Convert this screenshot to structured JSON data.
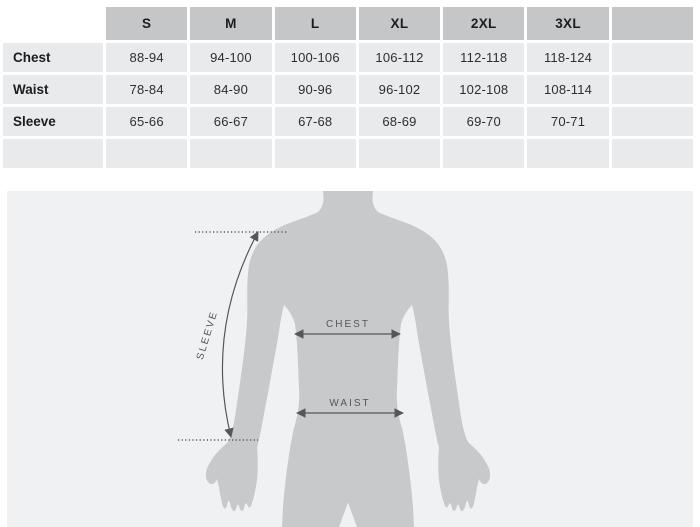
{
  "size_chart": {
    "columns": [
      "S",
      "M",
      "L",
      "XL",
      "2XL",
      "3XL",
      ""
    ],
    "rows": [
      {
        "label": "Chest",
        "values": [
          "88-94",
          "94-100",
          "100-106",
          "106-112",
          "112-118",
          "118-124",
          ""
        ]
      },
      {
        "label": "Waist",
        "values": [
          "78-84",
          "84-90",
          "90-96",
          "96-102",
          "102-108",
          "108-114",
          ""
        ]
      },
      {
        "label": "Sleeve",
        "values": [
          "65-66",
          "66-67",
          "67-68",
          "68-69",
          "69-70",
          "70-71",
          ""
        ]
      },
      {
        "label": "",
        "values": [
          "",
          "",
          "",
          "",
          "",
          "",
          ""
        ]
      }
    ]
  },
  "diagram": {
    "sleeve_label": "SLEEVE",
    "chest_label": "CHEST",
    "waist_label": "WAIST"
  },
  "colors": {
    "table_header_bg": "#c5c6c8",
    "table_cell_bg": "#e9eaeb",
    "table_text": "#1d1d1d",
    "table_value_text": "#2e2e2e",
    "diagram_bg": "#f0f1f3",
    "silhouette": "#c7c9cb",
    "annotation": "#54585b"
  }
}
